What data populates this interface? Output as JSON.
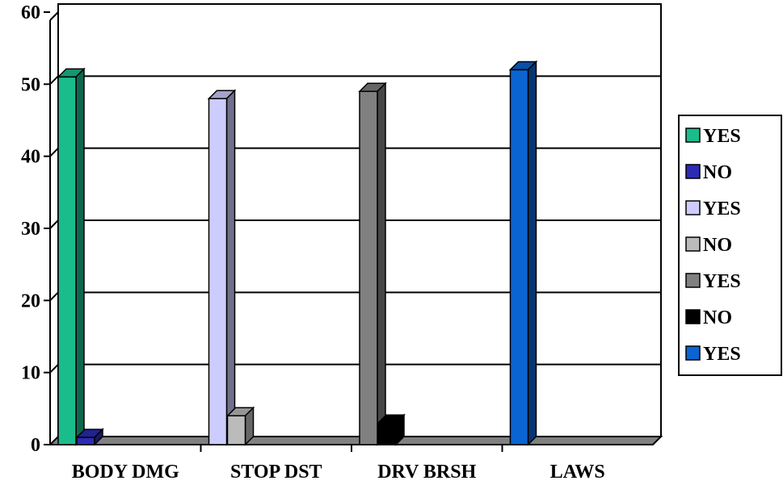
{
  "chart_data": {
    "type": "bar",
    "categories": [
      "BODY DMG",
      "STOP DST",
      "DRV BRSH",
      "LAWS"
    ],
    "ylim": [
      0,
      60
    ],
    "yticks": [
      0,
      10,
      20,
      30,
      40,
      50,
      60
    ],
    "grid": true,
    "legend_position": "right",
    "series": [
      {
        "name": "YES",
        "category": "BODY DMG",
        "value": 51,
        "color": "#1ABC8C"
      },
      {
        "name": "NO",
        "category": "BODY DMG",
        "value": 1,
        "color": "#2B2BB5"
      },
      {
        "name": "YES",
        "category": "STOP DST",
        "value": 48,
        "color": "#CCCCFF"
      },
      {
        "name": "NO",
        "category": "STOP DST",
        "value": 4,
        "color": "#BBBBBB"
      },
      {
        "name": "YES",
        "category": "DRV BRSH",
        "value": 49,
        "color": "#808080"
      },
      {
        "name": "NO",
        "category": "DRV BRSH",
        "value": 3,
        "color": "#000000"
      },
      {
        "name": "YES",
        "category": "LAWS",
        "value": 52,
        "color": "#0A64D2"
      }
    ]
  }
}
